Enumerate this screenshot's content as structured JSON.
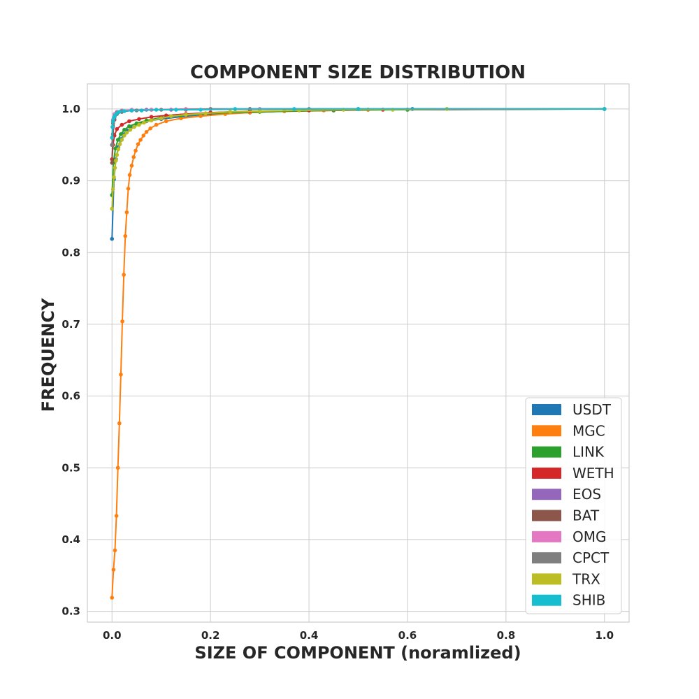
{
  "chart_data": {
    "type": "line",
    "title": "COMPONENT SIZE DISTRIBUTION",
    "xlabel": "SIZE OF COMPONENT (noramlized)",
    "ylabel": "FREQUENCY",
    "xlim": [
      -0.05,
      1.05
    ],
    "ylim": [
      0.285,
      1.035
    ],
    "xticks": [
      0.0,
      0.2,
      0.4,
      0.6,
      0.8,
      1.0
    ],
    "xtick_labels": [
      "0.0",
      "0.2",
      "0.4",
      "0.6",
      "0.8",
      "1.0"
    ],
    "yticks": [
      0.3,
      0.4,
      0.5,
      0.6,
      0.7,
      0.8,
      0.9,
      1.0
    ],
    "ytick_labels": [
      "0.3",
      "0.4",
      "0.5",
      "0.6",
      "0.7",
      "0.8",
      "0.9",
      "1.0"
    ],
    "grid": true,
    "legend_position": "lower-right",
    "series": [
      {
        "name": "USDT",
        "color": "#1f77b4",
        "x": [
          0.0,
          0.004,
          0.008,
          0.013,
          0.018,
          0.025,
          0.032,
          0.04,
          0.05,
          0.07,
          0.1,
          0.15,
          0.2,
          0.28,
          0.35,
          0.45,
          0.52,
          0.61,
          1.0
        ],
        "y": [
          0.819,
          0.902,
          0.93,
          0.947,
          0.958,
          0.965,
          0.97,
          0.975,
          0.979,
          0.983,
          0.986,
          0.99,
          0.993,
          0.995,
          0.997,
          0.998,
          0.999,
          1.0,
          1.0
        ]
      },
      {
        "name": "MGC",
        "color": "#ff7f0e",
        "x": [
          0.0,
          0.003,
          0.006,
          0.009,
          0.012,
          0.015,
          0.018,
          0.021,
          0.024,
          0.027,
          0.03,
          0.033,
          0.036,
          0.04,
          0.044,
          0.048,
          0.053,
          0.058,
          0.064,
          0.07,
          0.078,
          0.09,
          0.11,
          0.14,
          0.18,
          0.23,
          0.28,
          0.35,
          0.43,
          0.52,
          0.6,
          0.68,
          1.0
        ],
        "y": [
          0.319,
          0.358,
          0.385,
          0.433,
          0.5,
          0.562,
          0.63,
          0.704,
          0.769,
          0.823,
          0.856,
          0.889,
          0.908,
          0.921,
          0.933,
          0.942,
          0.951,
          0.957,
          0.963,
          0.968,
          0.973,
          0.978,
          0.983,
          0.987,
          0.99,
          0.993,
          0.995,
          0.997,
          0.998,
          0.999,
          0.999,
          1.0,
          1.0
        ]
      },
      {
        "name": "LINK",
        "color": "#2ca02c",
        "x": [
          0.0,
          0.003,
          0.007,
          0.012,
          0.018,
          0.025,
          0.035,
          0.05,
          0.07,
          0.1,
          0.14,
          0.2,
          0.3,
          0.45,
          0.6,
          1.0
        ],
        "y": [
          0.88,
          0.925,
          0.945,
          0.957,
          0.965,
          0.971,
          0.976,
          0.98,
          0.984,
          0.988,
          0.991,
          0.994,
          0.996,
          0.998,
          0.999,
          1.0
        ]
      },
      {
        "name": "WETH",
        "color": "#d62728",
        "x": [
          0.0,
          0.002,
          0.005,
          0.01,
          0.02,
          0.035,
          0.055,
          0.08,
          0.11,
          0.15,
          0.2,
          0.28,
          0.4,
          0.55,
          1.0
        ],
        "y": [
          0.93,
          0.95,
          0.963,
          0.972,
          0.978,
          0.983,
          0.986,
          0.989,
          0.991,
          0.993,
          0.995,
          0.997,
          0.998,
          0.999,
          1.0
        ]
      },
      {
        "name": "EOS",
        "color": "#9467bd",
        "x": [
          0.0,
          0.002,
          0.005,
          0.01,
          0.02,
          0.04,
          0.07,
          0.12,
          0.2,
          0.3,
          0.5,
          1.0
        ],
        "y": [
          0.95,
          0.975,
          0.988,
          0.994,
          0.997,
          0.998,
          0.999,
          0.999,
          1.0,
          1.0,
          1.0,
          1.0
        ]
      },
      {
        "name": "BAT",
        "color": "#8c564b",
        "x": [
          0.0,
          0.002,
          0.005,
          0.01,
          0.02,
          0.04,
          0.08,
          0.15,
          0.28,
          0.5,
          1.0
        ],
        "y": [
          0.925,
          0.965,
          0.985,
          0.993,
          0.996,
          0.998,
          0.999,
          0.999,
          1.0,
          1.0,
          1.0
        ]
      },
      {
        "name": "OMG",
        "color": "#e377c2",
        "x": [
          0.0,
          0.002,
          0.005,
          0.01,
          0.02,
          0.04,
          0.08,
          0.15,
          0.3,
          1.0
        ],
        "y": [
          0.96,
          0.985,
          0.993,
          0.996,
          0.998,
          0.999,
          0.999,
          1.0,
          1.0,
          1.0
        ]
      },
      {
        "name": "CPCT",
        "color": "#7f7f7f",
        "x": [
          0.0,
          0.002,
          0.005,
          0.01,
          0.02,
          0.05,
          0.1,
          0.2,
          0.4,
          1.0
        ],
        "y": [
          0.95,
          0.98,
          0.99,
          0.995,
          0.997,
          0.998,
          0.999,
          1.0,
          1.0,
          1.0
        ]
      },
      {
        "name": "TRX",
        "color": "#bcbd22",
        "x": [
          0.0,
          0.002,
          0.004,
          0.006,
          0.008,
          0.01,
          0.013,
          0.016,
          0.02,
          0.025,
          0.03,
          0.037,
          0.045,
          0.055,
          0.065,
          0.08,
          0.1,
          0.12,
          0.15,
          0.19,
          0.24,
          0.3,
          0.38,
          0.47,
          0.57,
          0.68,
          1.0
        ],
        "y": [
          0.861,
          0.888,
          0.905,
          0.918,
          0.928,
          0.936,
          0.944,
          0.951,
          0.957,
          0.963,
          0.967,
          0.971,
          0.975,
          0.978,
          0.981,
          0.984,
          0.987,
          0.99,
          0.992,
          0.994,
          0.996,
          0.997,
          0.998,
          0.999,
          0.999,
          1.0,
          1.0
        ]
      },
      {
        "name": "SHIB",
        "color": "#17becf",
        "x": [
          0.0,
          0.001,
          0.002,
          0.004,
          0.006,
          0.01,
          0.015,
          0.025,
          0.04,
          0.06,
          0.09,
          0.13,
          0.18,
          0.25,
          0.37,
          0.5,
          1.0
        ],
        "y": [
          0.96,
          0.975,
          0.983,
          0.988,
          0.991,
          0.994,
          0.996,
          0.997,
          0.998,
          0.998,
          0.999,
          0.999,
          0.999,
          1.0,
          1.0,
          1.0,
          1.0
        ]
      }
    ]
  }
}
